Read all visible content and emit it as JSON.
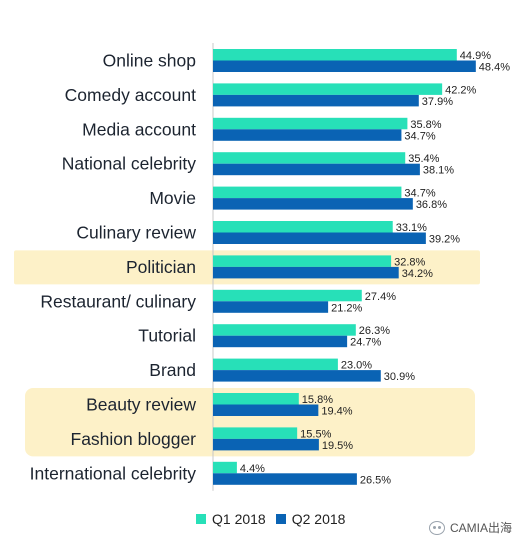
{
  "chart_data": {
    "type": "bar",
    "orientation": "horizontal",
    "categories": [
      "Online shop",
      "Comedy account",
      "Media account",
      "National celebrity",
      "Movie",
      "Culinary review",
      "Politician",
      "Restaurant/ culinary",
      "Tutorial",
      "Brand",
      "Beauty review",
      "Fashion blogger",
      "International celebrity"
    ],
    "series": [
      {
        "name": "Q1 2018",
        "color": "#27e0b8",
        "values": [
          44.9,
          42.2,
          35.8,
          35.4,
          34.7,
          33.1,
          32.8,
          27.4,
          26.3,
          23.0,
          15.8,
          15.5,
          4.4
        ]
      },
      {
        "name": "Q2 2018",
        "color": "#0a63b4",
        "values": [
          48.4,
          37.9,
          34.7,
          38.1,
          36.8,
          39.2,
          34.2,
          21.2,
          24.7,
          30.9,
          19.4,
          19.5,
          26.5
        ]
      }
    ],
    "value_labels": {
      "Q1 2018": [
        "44.9%",
        "42.2%",
        "35.8%",
        "35.4%",
        "34.7%",
        "33.1%",
        "32.8%",
        "27.4%",
        "26.3%",
        "23.0%",
        "15.8%",
        "15.5%",
        "4.4%"
      ],
      "Q2 2018": [
        "48.4%",
        "37.9%",
        "34.7%",
        "38.1%",
        "36.8%",
        "39.2%",
        "34.2%",
        "21.2%",
        "24.7%",
        "30.9%",
        "19.4%",
        "19.5%",
        "26.5%"
      ]
    },
    "highlighted_categories": [
      "Politician",
      "Beauty review",
      "Fashion blogger"
    ],
    "highlight_color": "#fdf1c8",
    "axis_color": "#c8c8c8",
    "legend": {
      "position": "bottom"
    },
    "grid": false
  },
  "legend": {
    "q1_label": "Q1 2018",
    "q2_label": "Q2 2018"
  },
  "watermark": {
    "text": "CAMIA出海"
  }
}
